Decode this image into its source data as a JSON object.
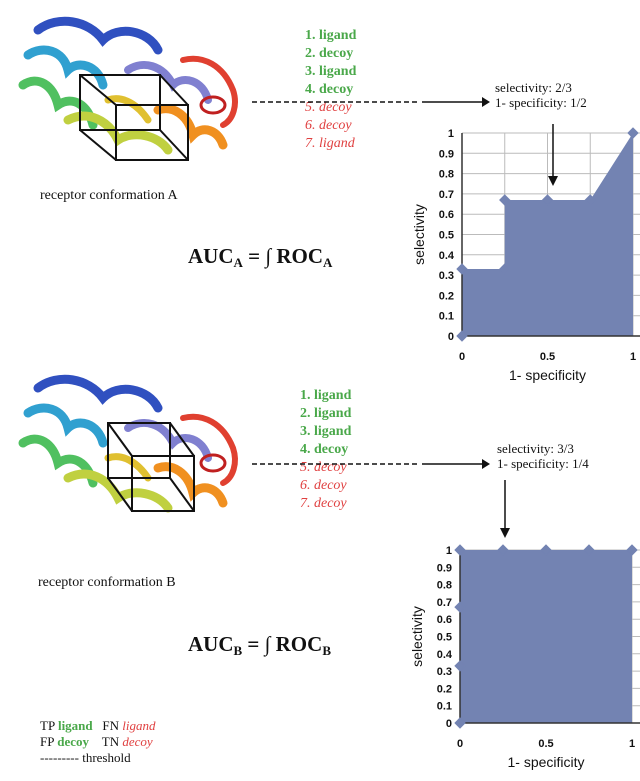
{
  "panelA": {
    "conformation_label": "receptor conformation A",
    "auc_main": "AUC",
    "auc_sub": "A",
    "auc_mid": " = ∫ ROC",
    "auc_sub2": "A",
    "ranking": [
      {
        "text": "1. ligand",
        "cls": "green"
      },
      {
        "text": "2. decoy",
        "cls": "green"
      },
      {
        "text": "3. ligand",
        "cls": "green"
      },
      {
        "text": "4. decoy",
        "cls": "green"
      },
      {
        "text": "5. decoy",
        "cls": "red"
      },
      {
        "text": "6. decoy",
        "cls": "red"
      },
      {
        "text": "7. ligand",
        "cls": "red"
      }
    ],
    "annot_selectivity": "selectivity: 2/3",
    "annot_specificity": "1- specificity: 1/2"
  },
  "panelB": {
    "conformation_label": "receptor conformation B",
    "auc_main": "AUC",
    "auc_sub": "B",
    "auc_mid": " = ∫ ROC",
    "auc_sub2": "B",
    "ranking": [
      {
        "text": "1. ligand",
        "cls": "green"
      },
      {
        "text": "2. ligand",
        "cls": "green"
      },
      {
        "text": "3. ligand",
        "cls": "green"
      },
      {
        "text": "4. decoy",
        "cls": "green"
      },
      {
        "text": "5. decoy",
        "cls": "red"
      },
      {
        "text": "6. decoy",
        "cls": "red"
      },
      {
        "text": "7. decoy",
        "cls": "red"
      }
    ],
    "annot_selectivity": "selectivity: 3/3",
    "annot_specificity": "1- specificity: 1/4"
  },
  "legend": {
    "tp": "TP",
    "tp_word": "ligand",
    "fn": "FN",
    "fn_word": "ligand",
    "fp": "FP",
    "fp_word": "decoy",
    "tn": "TN",
    "tn_word": "decoy",
    "threshold": "--------- threshold"
  },
  "colors": {
    "roc_fill": "#7383b2",
    "tp_green": "#4aa84a",
    "tn_red": "#e04040"
  },
  "chart_data": [
    {
      "type": "area",
      "xlabel": "1- specificity",
      "ylabel": "selectivity",
      "xlim": [
        0,
        1
      ],
      "ylim": [
        0,
        1
      ],
      "xticks": [
        "0",
        "0.5",
        "1"
      ],
      "yticks": [
        "0",
        "0.1",
        "0.2",
        "0.3",
        "0.4",
        "0.5",
        "0.6",
        "0.7",
        "0.8",
        "0.9",
        "1"
      ],
      "grid": true,
      "points": [
        {
          "x": 0,
          "y": 0
        },
        {
          "x": 0,
          "y": 0.33
        },
        {
          "x": 0.25,
          "y": 0.33
        },
        {
          "x": 0.25,
          "y": 0.67
        },
        {
          "x": 0.5,
          "y": 0.67
        },
        {
          "x": 0.75,
          "y": 0.67
        },
        {
          "x": 1,
          "y": 1
        }
      ]
    },
    {
      "type": "area",
      "xlabel": "1- specificity",
      "ylabel": "selectivity",
      "xlim": [
        0,
        1
      ],
      "ylim": [
        0,
        1
      ],
      "xticks": [
        "0",
        "0.5",
        "1"
      ],
      "yticks": [
        "0",
        "0.1",
        "0.2",
        "0.3",
        "0.4",
        "0.5",
        "0.6",
        "0.7",
        "0.8",
        "0.9",
        "1"
      ],
      "grid": true,
      "points": [
        {
          "x": 0,
          "y": 0
        },
        {
          "x": 0,
          "y": 0.33
        },
        {
          "x": 0,
          "y": 0.67
        },
        {
          "x": 0,
          "y": 1
        },
        {
          "x": 0.25,
          "y": 1
        },
        {
          "x": 0.5,
          "y": 1
        },
        {
          "x": 0.75,
          "y": 1
        },
        {
          "x": 1,
          "y": 1
        }
      ]
    }
  ]
}
